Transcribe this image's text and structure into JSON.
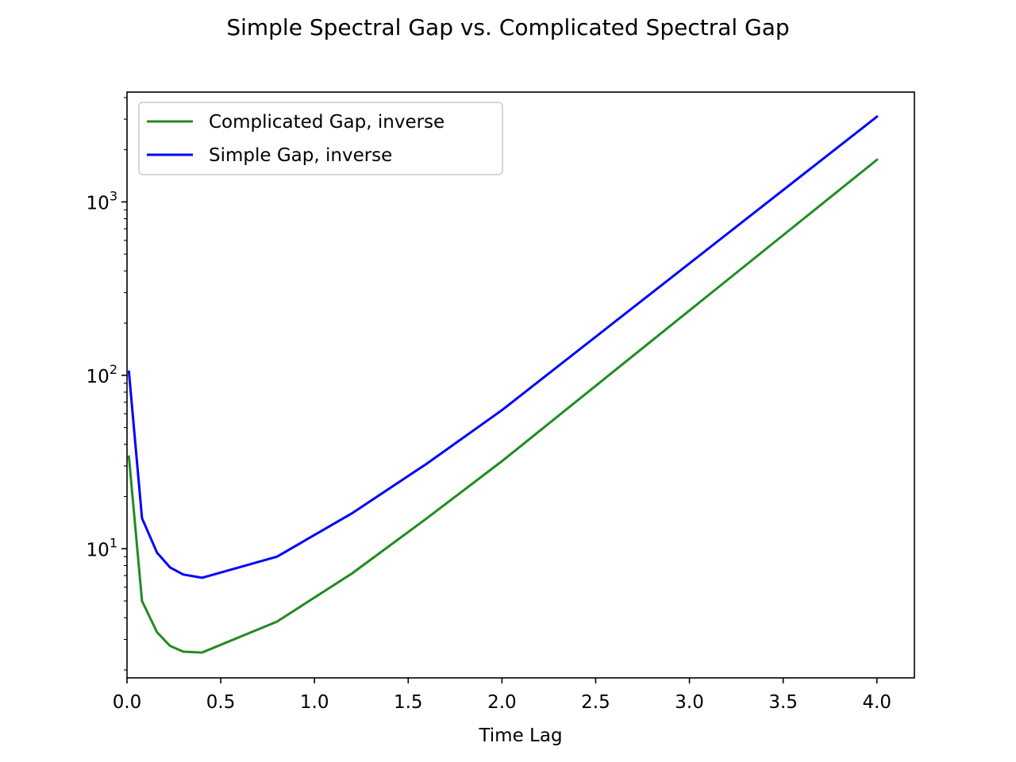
{
  "chart_data": {
    "type": "line",
    "title": "Simple Spectral Gap vs. Complicated Spectral Gap",
    "xlabel": "Time Lag",
    "ylabel": "",
    "yscale": "log",
    "xlim": [
      0.0,
      4.2
    ],
    "ylim": [
      1.8,
      4300
    ],
    "xticks": [
      0.0,
      0.5,
      1.0,
      1.5,
      2.0,
      2.5,
      3.0,
      3.5,
      4.0
    ],
    "xtick_labels": [
      "0.0",
      "0.5",
      "1.0",
      "1.5",
      "2.0",
      "2.5",
      "3.0",
      "3.5",
      "4.0"
    ],
    "yticks_major": [
      {
        "value": 10,
        "base": "10",
        "exp": "1"
      },
      {
        "value": 100,
        "base": "10",
        "exp": "2"
      },
      {
        "value": 1000,
        "base": "10",
        "exp": "3"
      }
    ],
    "grid": false,
    "legend_position": "top-left",
    "series": [
      {
        "name": "Complicated Gap, inverse",
        "color": "#228b22",
        "x": [
          0.01,
          0.08,
          0.16,
          0.23,
          0.3,
          0.4,
          0.8,
          1.2,
          1.6,
          2.0,
          4.0
        ],
        "y": [
          34,
          5.0,
          3.3,
          2.75,
          2.55,
          2.52,
          3.8,
          7.2,
          15,
          32,
          1750
        ]
      },
      {
        "name": "Simple Gap, inverse",
        "color": "#0000ff",
        "x": [
          0.01,
          0.08,
          0.16,
          0.23,
          0.3,
          0.4,
          0.8,
          1.2,
          1.6,
          2.0,
          4.0
        ],
        "y": [
          105,
          15,
          9.5,
          7.8,
          7.1,
          6.8,
          9.0,
          16,
          31,
          63,
          3100
        ]
      }
    ]
  }
}
